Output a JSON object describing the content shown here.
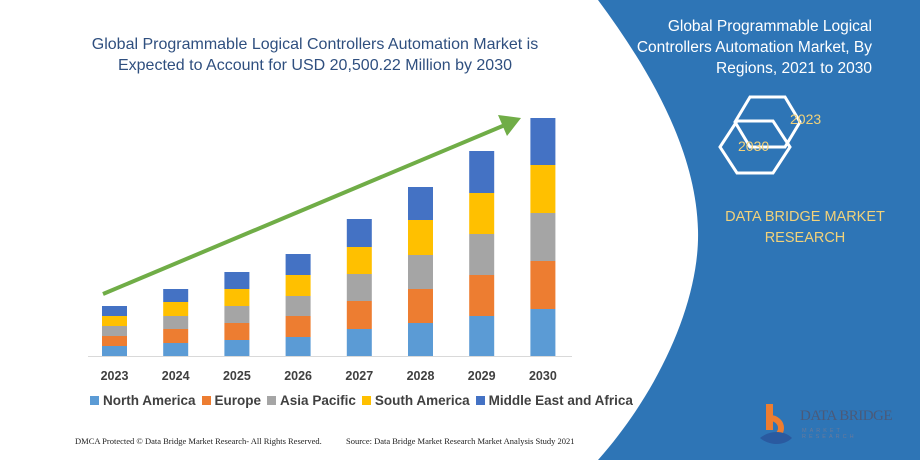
{
  "chart_data": {
    "type": "bar",
    "stacked": true,
    "title": "Global Programmable Logical Controllers Automation Market is Expected to Account for USD 20,500.22 Million by 2030",
    "categories": [
      "2023",
      "2024",
      "2025",
      "2026",
      "2027",
      "2028",
      "2029",
      "2030"
    ],
    "series": [
      {
        "name": "North America",
        "color": "#5b9bd5",
        "values": [
          10,
          13,
          16,
          19,
          27,
          33,
          40,
          47
        ]
      },
      {
        "name": "Europe",
        "color": "#ed7d31",
        "values": [
          10,
          14,
          17,
          21,
          28,
          34,
          41,
          48
        ]
      },
      {
        "name": "Asia Pacific",
        "color": "#a5a5a5",
        "values": [
          10,
          13,
          17,
          20,
          27,
          34,
          41,
          48
        ]
      },
      {
        "name": "South America",
        "color": "#ffc000",
        "values": [
          10,
          14,
          17,
          21,
          27,
          35,
          41,
          48
        ]
      },
      {
        "name": "Middle East and Africa",
        "color": "#4472c4",
        "values": [
          10,
          13,
          17,
          21,
          28,
          33,
          42,
          47
        ]
      }
    ],
    "xlabel": "",
    "ylabel": "",
    "ylim": [
      0,
      240
    ],
    "grid": false,
    "legend": "bottom",
    "trend_arrow_color": "#70ad47"
  },
  "side_panel": {
    "title": "Global Programmable Logical Controllers Automation Market, By Regions, 2021 to 2030",
    "hex_left": "2030",
    "hex_right": "2023",
    "brand": "DATA BRIDGE MARKET RESEARCH",
    "panel_color": "#2e75b6",
    "accent_text_color": "#f2d27a"
  },
  "footer": {
    "left": "DMCA Protected © Data Bridge Market Research-  All Rights Reserved.",
    "right": "Source: Data Bridge Market Research  Market Analysis Study 2021"
  },
  "logo": {
    "text": "DATA BRIDGE",
    "sub": "MARKET RESEARCH"
  }
}
